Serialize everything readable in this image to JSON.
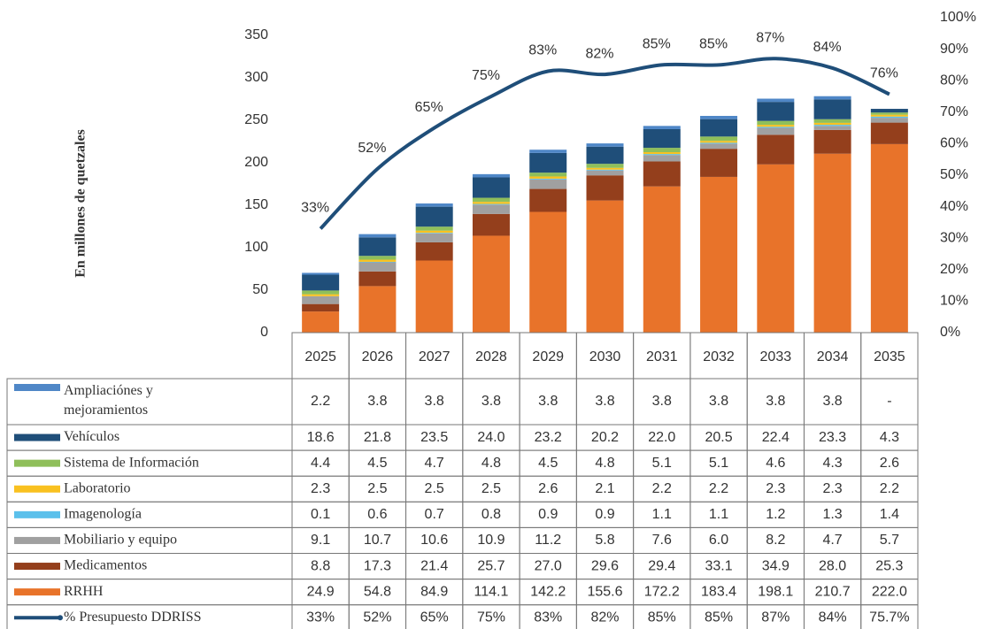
{
  "chart_data": {
    "type": "bar",
    "y_label": "En millones de quetzales",
    "categories": [
      "2025",
      "2026",
      "2027",
      "2028",
      "2029",
      "2030",
      "2031",
      "2032",
      "2033",
      "2034",
      "2035"
    ],
    "ylim": [
      0,
      350
    ],
    "yticks": [
      0,
      50,
      100,
      150,
      200,
      250,
      300,
      350
    ],
    "y2lim": [
      0,
      100
    ],
    "y2ticks": [
      {
        "value": 0,
        "label": "0%"
      },
      {
        "value": 10,
        "label": "10%"
      },
      {
        "value": 20,
        "label": "20%"
      },
      {
        "value": 30,
        "label": "30%"
      },
      {
        "value": 40,
        "label": "40%"
      },
      {
        "value": 50,
        "label": "50%"
      },
      {
        "value": 60,
        "label": "60%"
      },
      {
        "value": 70,
        "label": "70%"
      },
      {
        "value": 80,
        "label": "80%"
      },
      {
        "value": 90,
        "label": "90%"
      },
      {
        "value": 100,
        "label": "100%"
      }
    ],
    "series": [
      {
        "name": "Ampliaciónes y mejoramientos",
        "color": "#4f87c7",
        "values": [
          2.2,
          3.8,
          3.8,
          3.8,
          3.8,
          3.8,
          3.8,
          3.8,
          3.8,
          3.8,
          null
        ],
        "value_labels": [
          "2.2",
          "3.8",
          "3.8",
          "3.8",
          "3.8",
          "3.8",
          "3.8",
          "3.8",
          "3.8",
          "3.8",
          "-"
        ]
      },
      {
        "name": "Vehículos",
        "color": "#1f4e79",
        "values": [
          18.6,
          21.8,
          23.5,
          24.0,
          23.2,
          20.2,
          22.0,
          20.5,
          22.4,
          23.3,
          4.3
        ],
        "value_labels": [
          "18.6",
          "21.8",
          "23.5",
          "24.0",
          "23.2",
          "20.2",
          "22.0",
          "20.5",
          "22.4",
          "23.3",
          "4.3"
        ]
      },
      {
        "name": "Sistema de Información",
        "color": "#8fbf5a",
        "values": [
          4.4,
          4.5,
          4.7,
          4.8,
          4.5,
          4.8,
          5.1,
          5.1,
          4.6,
          4.3,
          2.6
        ],
        "value_labels": [
          "4.4",
          "4.5",
          "4.7",
          "4.8",
          "4.5",
          "4.8",
          "5.1",
          "5.1",
          "4.6",
          "4.3",
          "2.6"
        ]
      },
      {
        "name": "Laboratorio",
        "color": "#f9c120",
        "values": [
          2.3,
          2.5,
          2.5,
          2.5,
          2.6,
          2.1,
          2.2,
          2.2,
          2.3,
          2.3,
          2.2
        ],
        "value_labels": [
          "2.3",
          "2.5",
          "2.5",
          "2.5",
          "2.6",
          "2.1",
          "2.2",
          "2.2",
          "2.3",
          "2.3",
          "2.2"
        ]
      },
      {
        "name": "Imagenología",
        "color": "#5bc0eb",
        "values": [
          0.1,
          0.6,
          0.7,
          0.8,
          0.9,
          0.9,
          1.1,
          1.1,
          1.2,
          1.3,
          1.4
        ],
        "value_labels": [
          "0.1",
          "0.6",
          "0.7",
          "0.8",
          "0.9",
          "0.9",
          "1.1",
          "1.1",
          "1.2",
          "1.3",
          "1.4"
        ]
      },
      {
        "name": "Mobiliario y equipo",
        "color": "#a0a0a0",
        "values": [
          9.1,
          10.7,
          10.6,
          10.9,
          11.2,
          5.8,
          7.6,
          6.0,
          8.2,
          4.7,
          5.7
        ],
        "value_labels": [
          "9.1",
          "10.7",
          "10.6",
          "10.9",
          "11.2",
          "5.8",
          "7.6",
          "6.0",
          "8.2",
          "4.7",
          "5.7"
        ]
      },
      {
        "name": "Medicamentos",
        "color": "#943f1c",
        "values": [
          8.8,
          17.3,
          21.4,
          25.7,
          27.0,
          29.6,
          29.4,
          33.1,
          34.9,
          28.0,
          25.3
        ],
        "value_labels": [
          "8.8",
          "17.3",
          "21.4",
          "25.7",
          "27.0",
          "29.6",
          "29.4",
          "33.1",
          "34.9",
          "28.0",
          "25.3"
        ]
      },
      {
        "name": "RRHH",
        "color": "#e8732a",
        "values": [
          24.9,
          54.8,
          84.9,
          114.1,
          142.2,
          155.6,
          172.2,
          183.4,
          198.1,
          210.7,
          222.0
        ],
        "value_labels": [
          "24.9",
          "54.8",
          "84.9",
          "114.1",
          "142.2",
          "155.6",
          "172.2",
          "183.4",
          "198.1",
          "210.7",
          "222.0"
        ]
      },
      {
        "name": "% Presupuesto DDRISS",
        "color": "#1f4e79",
        "type": "line",
        "axis": "y2",
        "values": [
          33,
          52,
          65,
          75,
          83,
          82,
          85,
          85,
          87,
          84,
          75.7
        ],
        "value_labels": [
          "33%",
          "52%",
          "65%",
          "75%",
          "83%",
          "82%",
          "85%",
          "85%",
          "87%",
          "84%",
          "75.7%"
        ],
        "data_labels": [
          "33%",
          "52%",
          "65%",
          "75%",
          "83%",
          "82%",
          "85%",
          "85%",
          "87%",
          "84%",
          "76%"
        ]
      }
    ]
  }
}
